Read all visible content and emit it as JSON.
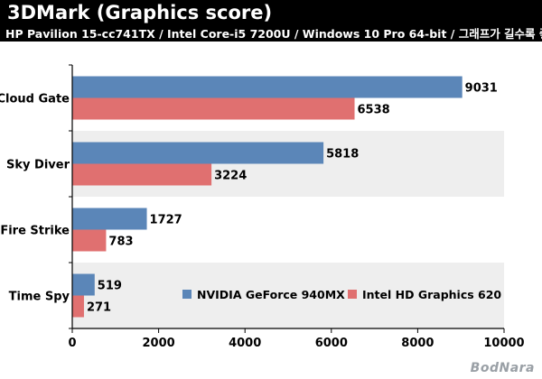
{
  "header": {
    "title": "3DMark (Graphics score)",
    "subtitle": "HP Pavilion 15-cc741TX / Intel Core-i5 7200U / Windows 10 Pro 64-bit / 그래프가 길수록 좋음"
  },
  "watermark": "BodNara",
  "colors": {
    "series_a": "#5b86b8",
    "series_b": "#e07070",
    "band": "#eeeeee"
  },
  "chart_data": {
    "type": "bar",
    "orientation": "horizontal",
    "categories": [
      "Cloud Gate",
      "Sky Diver",
      "Fire Strike",
      "Time Spy"
    ],
    "series": [
      {
        "name": "NVIDIA GeForce 940MX",
        "values": [
          9031,
          5818,
          1727,
          519
        ]
      },
      {
        "name": "Intel HD Graphics 620",
        "values": [
          6538,
          3224,
          783,
          271
        ]
      }
    ],
    "xlim": [
      0,
      10000
    ],
    "xticks": [
      "0",
      "2000",
      "4000",
      "6000",
      "8000",
      "10000"
    ],
    "legend_position": "inside-bottom-right",
    "grid": false
  }
}
